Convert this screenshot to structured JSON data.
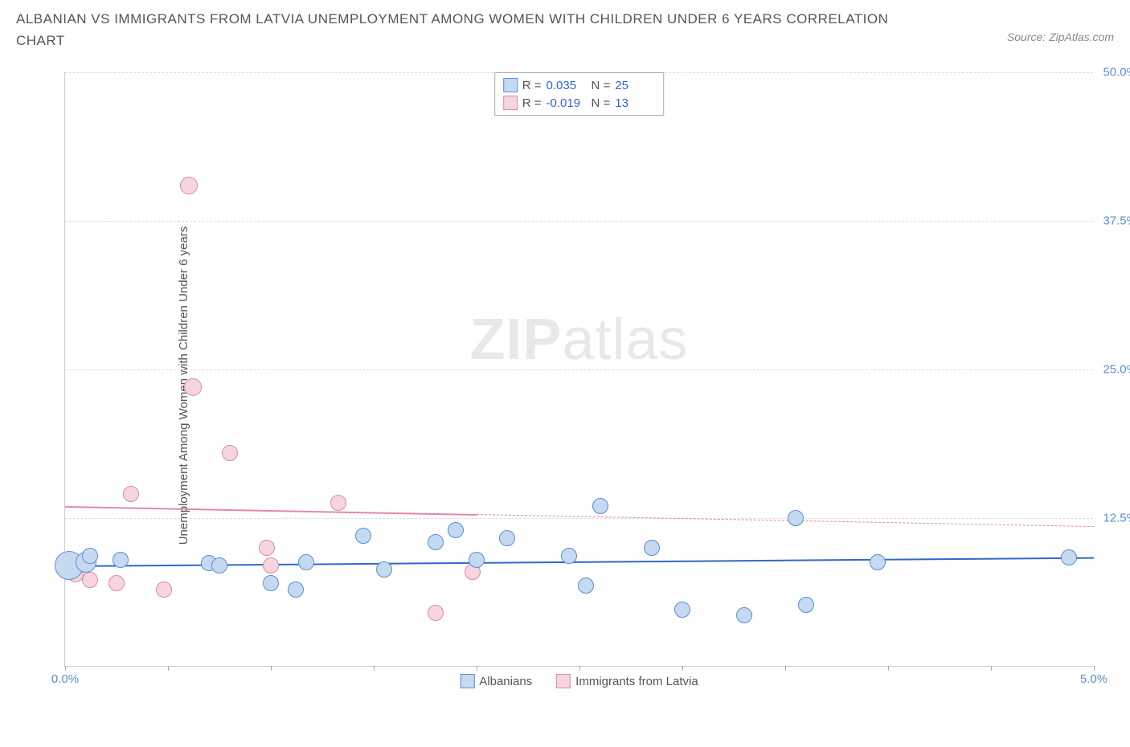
{
  "title": "ALBANIAN VS IMMIGRANTS FROM LATVIA UNEMPLOYMENT AMONG WOMEN WITH CHILDREN UNDER 6 YEARS CORRELATION CHART",
  "source": "Source: ZipAtlas.com",
  "y_axis_label": "Unemployment Among Women with Children Under 6 years",
  "watermark_bold": "ZIP",
  "watermark_light": "atlas",
  "chart": {
    "type": "scatter",
    "xlim": [
      0.0,
      5.0
    ],
    "ylim": [
      0.0,
      50.0
    ],
    "x_ticks": [
      0.0,
      0.5,
      1.0,
      1.5,
      2.0,
      2.5,
      3.0,
      3.5,
      4.0,
      4.5,
      5.0
    ],
    "x_tick_labels_shown": {
      "0.0": "0.0%",
      "5.0": "5.0%"
    },
    "y_ticks": [
      12.5,
      25.0,
      37.5,
      50.0
    ],
    "y_tick_labels": [
      "12.5%",
      "25.0%",
      "37.5%",
      "50.0%"
    ],
    "grid_color": "#dddddd",
    "axis_color": "#cccccc",
    "tick_label_color": "#5b8dd6",
    "background_color": "#ffffff",
    "series": [
      {
        "name": "Albanians",
        "label": "Albanians",
        "fill_color": "#c5d9f1",
        "stroke_color": "#5b8dd6",
        "line_color": "#3366cc",
        "line_style": "solid",
        "marker_radius": 10,
        "R_label": "R =",
        "R": "0.035",
        "N_label": "N =",
        "N": "25",
        "regression": {
          "x1": 0.0,
          "y1": 8.5,
          "x2": 5.0,
          "y2": 9.2
        },
        "points": [
          {
            "x": 0.02,
            "y": 8.5,
            "r": 18
          },
          {
            "x": 0.1,
            "y": 8.8,
            "r": 13
          },
          {
            "x": 0.12,
            "y": 9.3,
            "r": 10
          },
          {
            "x": 0.27,
            "y": 9.0,
            "r": 10
          },
          {
            "x": 0.7,
            "y": 8.7,
            "r": 10
          },
          {
            "x": 0.75,
            "y": 8.5,
            "r": 10
          },
          {
            "x": 1.0,
            "y": 7.0,
            "r": 10
          },
          {
            "x": 1.12,
            "y": 6.5,
            "r": 10
          },
          {
            "x": 1.17,
            "y": 8.8,
            "r": 10
          },
          {
            "x": 1.45,
            "y": 11.0,
            "r": 10
          },
          {
            "x": 1.55,
            "y": 8.2,
            "r": 10
          },
          {
            "x": 1.8,
            "y": 10.5,
            "r": 10
          },
          {
            "x": 1.9,
            "y": 11.5,
            "r": 10
          },
          {
            "x": 2.0,
            "y": 9.0,
            "r": 10
          },
          {
            "x": 2.15,
            "y": 10.8,
            "r": 10
          },
          {
            "x": 2.45,
            "y": 9.3,
            "r": 10
          },
          {
            "x": 2.53,
            "y": 6.8,
            "r": 10
          },
          {
            "x": 2.6,
            "y": 13.5,
            "r": 10
          },
          {
            "x": 2.85,
            "y": 10.0,
            "r": 10
          },
          {
            "x": 3.0,
            "y": 4.8,
            "r": 10
          },
          {
            "x": 3.3,
            "y": 4.3,
            "r": 10
          },
          {
            "x": 3.55,
            "y": 12.5,
            "r": 10
          },
          {
            "x": 3.6,
            "y": 5.2,
            "r": 10
          },
          {
            "x": 3.95,
            "y": 8.8,
            "r": 10
          },
          {
            "x": 4.88,
            "y": 9.2,
            "r": 10
          }
        ]
      },
      {
        "name": "Immigrants from Latvia",
        "label": "Immigrants from Latvia",
        "fill_color": "#f6d5de",
        "stroke_color": "#d98ba5",
        "line_color": "#e28aa4",
        "line_style": "solid-then-dashed",
        "marker_radius": 10,
        "R_label": "R =",
        "R": "-0.019",
        "N_label": "N =",
        "N": "13",
        "regression": {
          "x1": 0.0,
          "y1": 13.5,
          "x2": 5.0,
          "y2": 11.8
        },
        "regression_solid_until_x": 2.0,
        "points": [
          {
            "x": 0.05,
            "y": 7.8,
            "r": 10
          },
          {
            "x": 0.12,
            "y": 7.3,
            "r": 10
          },
          {
            "x": 0.25,
            "y": 7.0,
            "r": 10
          },
          {
            "x": 0.32,
            "y": 14.5,
            "r": 10
          },
          {
            "x": 0.48,
            "y": 6.5,
            "r": 10
          },
          {
            "x": 0.6,
            "y": 40.5,
            "r": 11
          },
          {
            "x": 0.62,
            "y": 23.5,
            "r": 11
          },
          {
            "x": 0.8,
            "y": 18.0,
            "r": 10
          },
          {
            "x": 0.98,
            "y": 10.0,
            "r": 10
          },
          {
            "x": 1.0,
            "y": 8.5,
            "r": 10
          },
          {
            "x": 1.33,
            "y": 13.8,
            "r": 10
          },
          {
            "x": 1.8,
            "y": 4.5,
            "r": 10
          },
          {
            "x": 1.98,
            "y": 8.0,
            "r": 10
          }
        ]
      }
    ]
  },
  "legend_bottom": [
    {
      "label": "Albanians",
      "fill": "#c5d9f1",
      "stroke": "#5b8dd6"
    },
    {
      "label": "Immigrants from Latvia",
      "fill": "#f6d5de",
      "stroke": "#d98ba5"
    }
  ]
}
